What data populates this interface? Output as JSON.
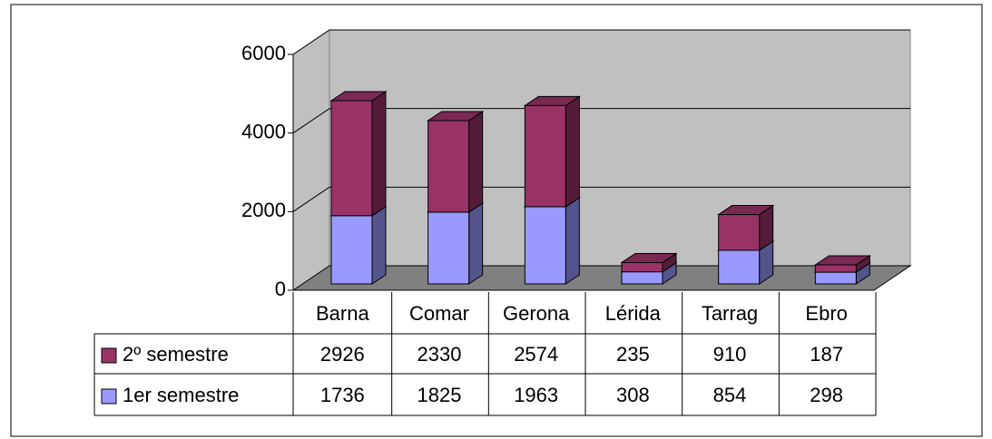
{
  "chart_data": {
    "type": "bar3d_stacked",
    "categories": [
      "Barna",
      "Comar",
      "Gerona",
      "Lérida",
      "Tarrag",
      "Ebro"
    ],
    "series": [
      {
        "name": "1er semestre",
        "color": "#9999ff",
        "values": [
          1736,
          1825,
          1963,
          308,
          854,
          298
        ]
      },
      {
        "name": "2º semestre",
        "color": "#993366",
        "values": [
          2926,
          2330,
          2574,
          235,
          910,
          187
        ]
      }
    ],
    "ylim": [
      0,
      6000
    ],
    "yticks": [
      0,
      2000,
      4000,
      6000
    ],
    "grid": true,
    "data_table": true
  }
}
